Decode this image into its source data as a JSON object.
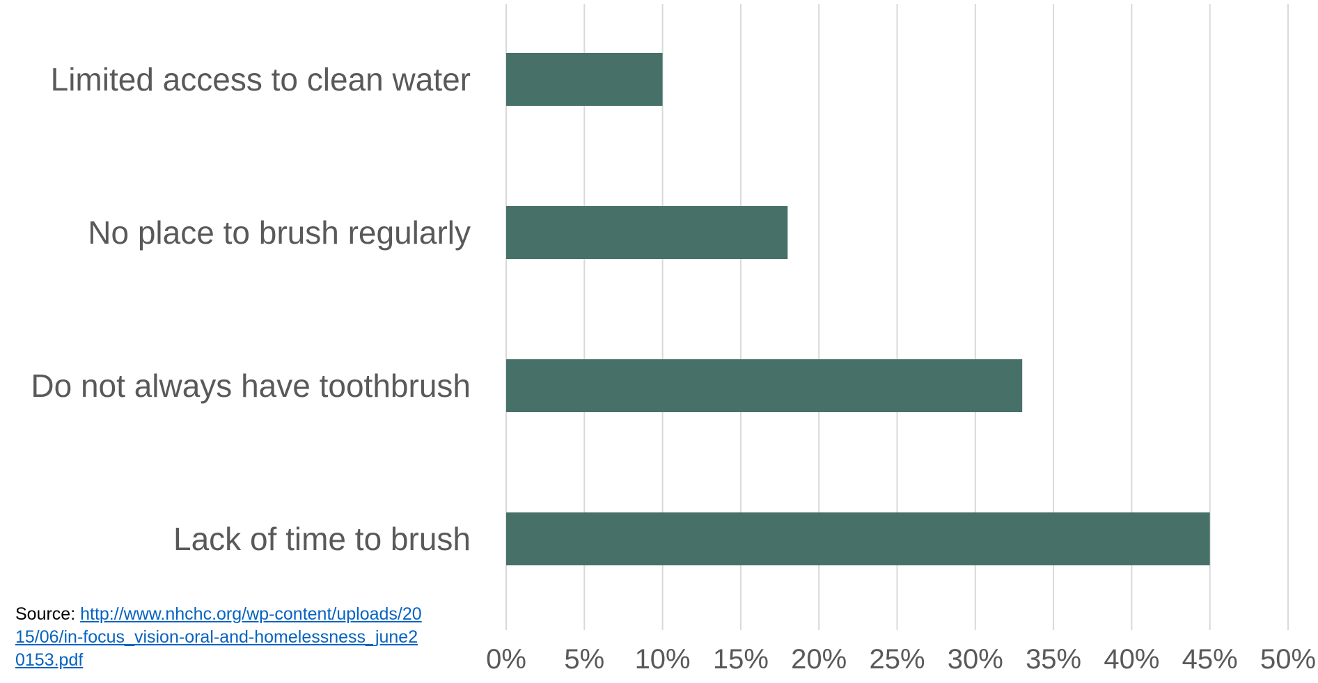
{
  "colors": {
    "bar": "#477068",
    "grid": "#d9d9d9",
    "text": "#595959",
    "link": "#0563c1"
  },
  "source": {
    "prefix": "Source: ",
    "link_text": "http://www.nhchc.org/wp-content/uploads/2015/06/in-focus_vision-oral-and-homelessness_june20153.pdf"
  },
  "chart_data": {
    "type": "bar",
    "orientation": "horizontal",
    "title": "",
    "xlabel": "",
    "ylabel": "",
    "categories": [
      "Limited access to clean water",
      "No place to brush regularly",
      "Do not always have toothbrush",
      "Lack of time to brush"
    ],
    "values": [
      10,
      18,
      33,
      45
    ],
    "xlim": [
      0,
      50
    ],
    "x_ticks": [
      0,
      5,
      10,
      15,
      20,
      25,
      30,
      35,
      40,
      45,
      50
    ],
    "x_tick_labels": [
      "0%",
      "5%",
      "10%",
      "15%",
      "20%",
      "25%",
      "30%",
      "35%",
      "40%",
      "45%",
      "50%"
    ],
    "grid": "vertical",
    "legend": "none"
  }
}
